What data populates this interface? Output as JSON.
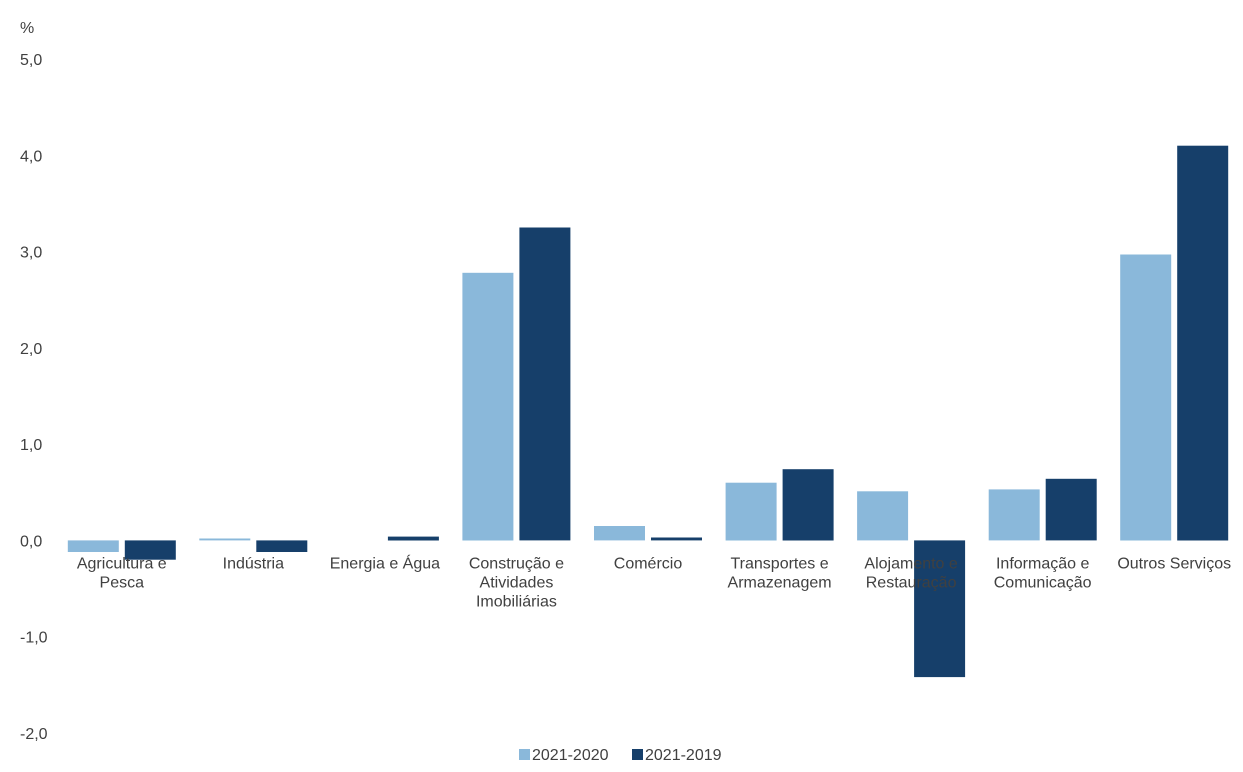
{
  "chart_data": {
    "type": "bar",
    "ylabel": "%",
    "ylim": [
      -2.0,
      5.0
    ],
    "yticks": [
      -2.0,
      -1.0,
      0.0,
      1.0,
      2.0,
      3.0,
      4.0,
      5.0
    ],
    "ytick_labels": [
      "-2,0",
      "-1,0",
      "0,0",
      "1,0",
      "2,0",
      "3,0",
      "4,0",
      "5,0"
    ],
    "grid": false,
    "legend_position": "bottom-center",
    "categories": [
      [
        "Agricultura e",
        "Pesca"
      ],
      [
        "Indústria"
      ],
      [
        "Energia e Água"
      ],
      [
        "Construção e",
        "Atividades",
        "Imobiliárias"
      ],
      [
        "Comércio"
      ],
      [
        "Transportes e",
        "Armazenagem"
      ],
      [
        "Alojamento e",
        "Restauração"
      ],
      [
        "Informação e",
        "Comunicação"
      ],
      [
        "Outros Serviços"
      ]
    ],
    "series": [
      {
        "name": "2021-2020",
        "color": "#8AB8DA",
        "values": [
          -0.12,
          0.02,
          0.0,
          2.78,
          0.15,
          0.6,
          0.51,
          0.53,
          2.97
        ]
      },
      {
        "name": "2021-2019",
        "color": "#163F6A",
        "values": [
          -0.2,
          -0.12,
          0.04,
          3.25,
          0.03,
          0.74,
          -1.42,
          0.64,
          4.1
        ]
      }
    ]
  }
}
